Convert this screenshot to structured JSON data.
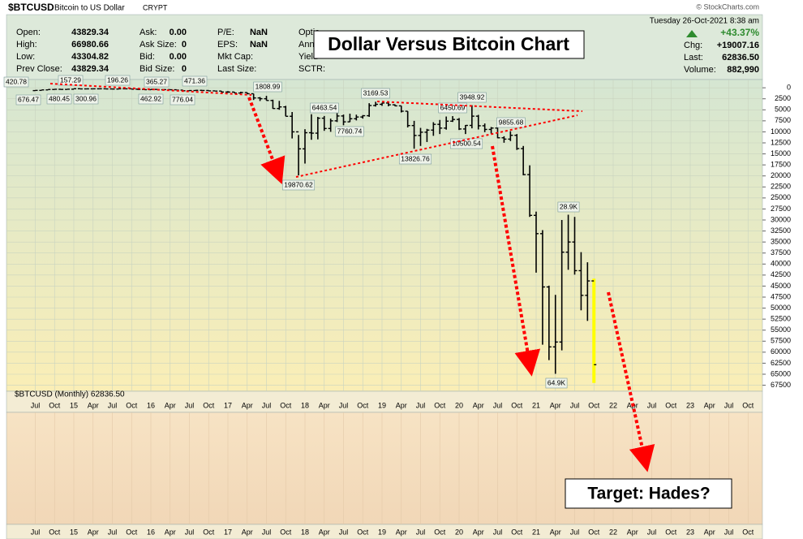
{
  "header": {
    "symbol": "$BTCUSD",
    "name": "Bitcoin to US Dollar",
    "exchange": "CRYPT",
    "watermark": "© StockCharts.com",
    "datetime": "Tuesday  26-Oct-2021  8:38 am",
    "quote_cols": [
      [
        {
          "label": "Open:",
          "value": "43829.34"
        },
        {
          "label": "High:",
          "value": "66980.66"
        },
        {
          "label": "Low:",
          "value": "43304.82"
        },
        {
          "label": "Prev Close:",
          "value": "43829.34"
        }
      ],
      [
        {
          "label": "Ask:",
          "value": "0.00"
        },
        {
          "label": "Ask Size:",
          "value": "0"
        },
        {
          "label": "Bid:",
          "value": "0.00"
        },
        {
          "label": "Bid Size:",
          "value": "0"
        }
      ],
      [
        {
          "label": "P/E:",
          "value": "NaN"
        },
        {
          "label": "EPS:",
          "value": "NaN"
        },
        {
          "label": "Mkt Cap:"
        },
        {
          "label": "Last Size:"
        }
      ],
      [
        {
          "label": "Optio"
        },
        {
          "label": "Annu"
        },
        {
          "label": "Yield"
        },
        {
          "label": "SCTR:"
        }
      ]
    ],
    "change_pct": "+43.37%",
    "stats": [
      {
        "label": "Chg:",
        "value": "+19007.16"
      },
      {
        "label": "Last:",
        "value": "62836.50"
      },
      {
        "label": "Volume:",
        "value": "882,990"
      }
    ]
  },
  "overlay": {
    "title": "Dollar Versus Bitcoin Chart",
    "target": "Target:  Hades?"
  },
  "chart_data": {
    "type": "ohlc",
    "legend": "$BTCUSD (Monthly) 62836.50",
    "y_inverted": true,
    "grid": true,
    "color": "#000000",
    "highlight_color": "#ffff00",
    "ylim": [
      -1500,
      68500
    ],
    "yticks": [
      0,
      2500,
      5000,
      7500,
      10000,
      12500,
      15000,
      17500,
      20000,
      22500,
      25000,
      27500,
      30000,
      32500,
      35000,
      37500,
      40000,
      42500,
      45000,
      47500,
      50000,
      52500,
      55000,
      57500,
      60000,
      62500,
      65000,
      67500
    ],
    "categories": [
      "Jul",
      null,
      null,
      "Oct",
      null,
      null,
      "15",
      null,
      null,
      "Apr",
      null,
      null,
      "Jul",
      null,
      null,
      "Oct",
      null,
      null,
      "16",
      null,
      null,
      "Apr",
      null,
      null,
      "Jul",
      null,
      null,
      "Oct",
      null,
      null,
      "17",
      null,
      null,
      "Apr",
      null,
      null,
      "Jul",
      null,
      null,
      "Oct",
      null,
      null,
      "18",
      null,
      null,
      "Apr",
      null,
      null,
      "Jul",
      null,
      null,
      "Oct",
      null,
      null,
      "19",
      null,
      null,
      "Apr",
      null,
      null,
      "Jul",
      null,
      null,
      "Oct",
      null,
      null,
      "20",
      null,
      null,
      "Apr",
      null,
      null,
      "Jul",
      null,
      null,
      "Oct",
      null,
      null,
      "21",
      null,
      null,
      "Apr",
      null,
      null,
      "Jul",
      null,
      null,
      "Oct",
      null,
      null,
      "22",
      null,
      null,
      "Apr",
      null,
      null,
      "Jul",
      null,
      null,
      "Oct",
      null,
      null,
      "23",
      null,
      null,
      "Apr",
      null,
      null,
      "Jul",
      null,
      null,
      "Oct"
    ],
    "open": [
      640,
      590,
      480,
      390,
      340,
      375,
      320,
      217,
      255,
      245,
      236,
      230,
      263,
      284,
      230,
      236,
      314,
      377,
      430,
      369,
      437,
      416,
      448,
      531,
      673,
      624,
      575,
      609,
      700,
      745,
      963,
      970,
      1190,
      1080,
      1350,
      2300,
      2480,
      2880,
      4700,
      4340,
      6470,
      10000,
      13860,
      10200,
      10300,
      6900,
      9240,
      7500,
      6400,
      7730,
      7030,
      6630,
      6340,
      4020,
      3750,
      3460,
      3860,
      4100,
      5320,
      8570,
      10820,
      10080,
      9600,
      8300,
      9150,
      7570,
      7190,
      9350,
      8540,
      6440,
      8620,
      9450,
      9140,
      11350,
      11650,
      10780,
      13800,
      19700,
      28950,
      33100,
      45200,
      58800,
      57700,
      37300,
      35000,
      41500,
      47100,
      43829.34,
      null,
      null,
      null,
      null,
      null,
      null,
      null,
      null,
      null,
      null,
      null,
      null,
      null,
      null,
      null,
      null,
      null,
      null,
      null,
      null,
      null,
      null,
      null,
      null
    ],
    "high": [
      660,
      600,
      500,
      420,
      460,
      380,
      320,
      260,
      300,
      260,
      250,
      265,
      315,
      285,
      245,
      330,
      500,
      465,
      460,
      440,
      440,
      470,
      550,
      780,
      680,
      630,
      630,
      740,
      755,
      980,
      1160,
      1210,
      1290,
      1420,
      2770,
      3000,
      2900,
      4770,
      4990,
      6470,
      11500,
      19870.62,
      17200,
      11800,
      11700,
      9770,
      9990,
      7770,
      8500,
      7760.74,
      7400,
      7000,
      6600,
      4260,
      4100,
      4200,
      4140,
      5600,
      9000,
      13826.76,
      13200,
      12300,
      10900,
      10500,
      9500,
      7750,
      9580,
      10500,
      9200,
      9460,
      10070,
      10400,
      11450,
      12470,
      12100,
      14100,
      19850,
      29300,
      41950,
      58300,
      61800,
      64900,
      59600,
      41300,
      42400,
      50500,
      52900,
      66980.66,
      null,
      null,
      null,
      null,
      null,
      null,
      null,
      null,
      null,
      null,
      null,
      null,
      null,
      null,
      null,
      null,
      null,
      null,
      null,
      null,
      null,
      null,
      null,
      null
    ],
    "low": [
      570,
      450,
      380,
      280,
      320,
      310,
      170,
      200,
      240,
      210,
      225,
      220,
      255,
      200,
      225,
      235,
      300,
      350,
      350,
      365,
      400,
      415,
      440,
      520,
      590,
      480,
      570,
      605,
      680,
      740,
      750,
      915,
      890,
      1060,
      1350,
      2100,
      1830,
      2700,
      2970,
      4100,
      5500,
      10700,
      9400,
      6000,
      6600,
      6400,
      7000,
      5750,
      6070,
      5880,
      6100,
      6200,
      3500,
      3170,
      3400,
      3390,
      3740,
      4070,
      5320,
      7500,
      9100,
      9320,
      7800,
      7300,
      6520,
      6430,
      6870,
      8450,
      3950,
      6150,
      8100,
      8900,
      8950,
      11000,
      9860,
      10500,
      13200,
      17600,
      28100,
      32300,
      44900,
      47000,
      30000,
      28800,
      29300,
      37300,
      39600,
      43304.82,
      null,
      null,
      null,
      null,
      null,
      null,
      null,
      null,
      null,
      null,
      null,
      null,
      null,
      null,
      null,
      null,
      null,
      null,
      null,
      null,
      null,
      null,
      null,
      null
    ],
    "close": [
      590,
      480,
      390,
      340,
      375,
      320,
      217,
      255,
      245,
      236,
      230,
      263,
      284,
      230,
      236,
      314,
      377,
      430,
      369,
      437,
      416,
      448,
      531,
      673,
      624,
      575,
      609,
      700,
      745,
      963,
      970,
      1190,
      1080,
      1350,
      2300,
      2480,
      2880,
      4700,
      4340,
      6470,
      10000,
      13860,
      10200,
      10300,
      6900,
      9240,
      7500,
      6400,
      7730,
      7030,
      6630,
      6340,
      4020,
      3750,
      3460,
      3860,
      4100,
      5320,
      8570,
      10820,
      10080,
      9600,
      8300,
      9150,
      7570,
      7190,
      9350,
      8540,
      6440,
      8620,
      9450,
      9140,
      11350,
      11650,
      10780,
      13800,
      19700,
      28950,
      33100,
      45200,
      58800,
      57700,
      37300,
      35000,
      41500,
      47100,
      43829.34,
      62836.5,
      null,
      null,
      null,
      null,
      null,
      null,
      null,
      null,
      null,
      null,
      null,
      null,
      null,
      null,
      null,
      null,
      null,
      null,
      null,
      null,
      null,
      null,
      null,
      null
    ],
    "annotations": [
      "420.78",
      "676.47",
      "157.29",
      "480.45",
      "300.96",
      "196.26",
      "462.92",
      "365.27",
      "776.04",
      "471.36",
      "1808.99",
      "19870.62",
      "6463.54",
      "7760.74",
      "3169.53",
      "13826.76",
      "3948.92",
      "6450.69",
      "10500.54",
      "9855.68",
      "28.9K",
      "64.9K"
    ]
  }
}
